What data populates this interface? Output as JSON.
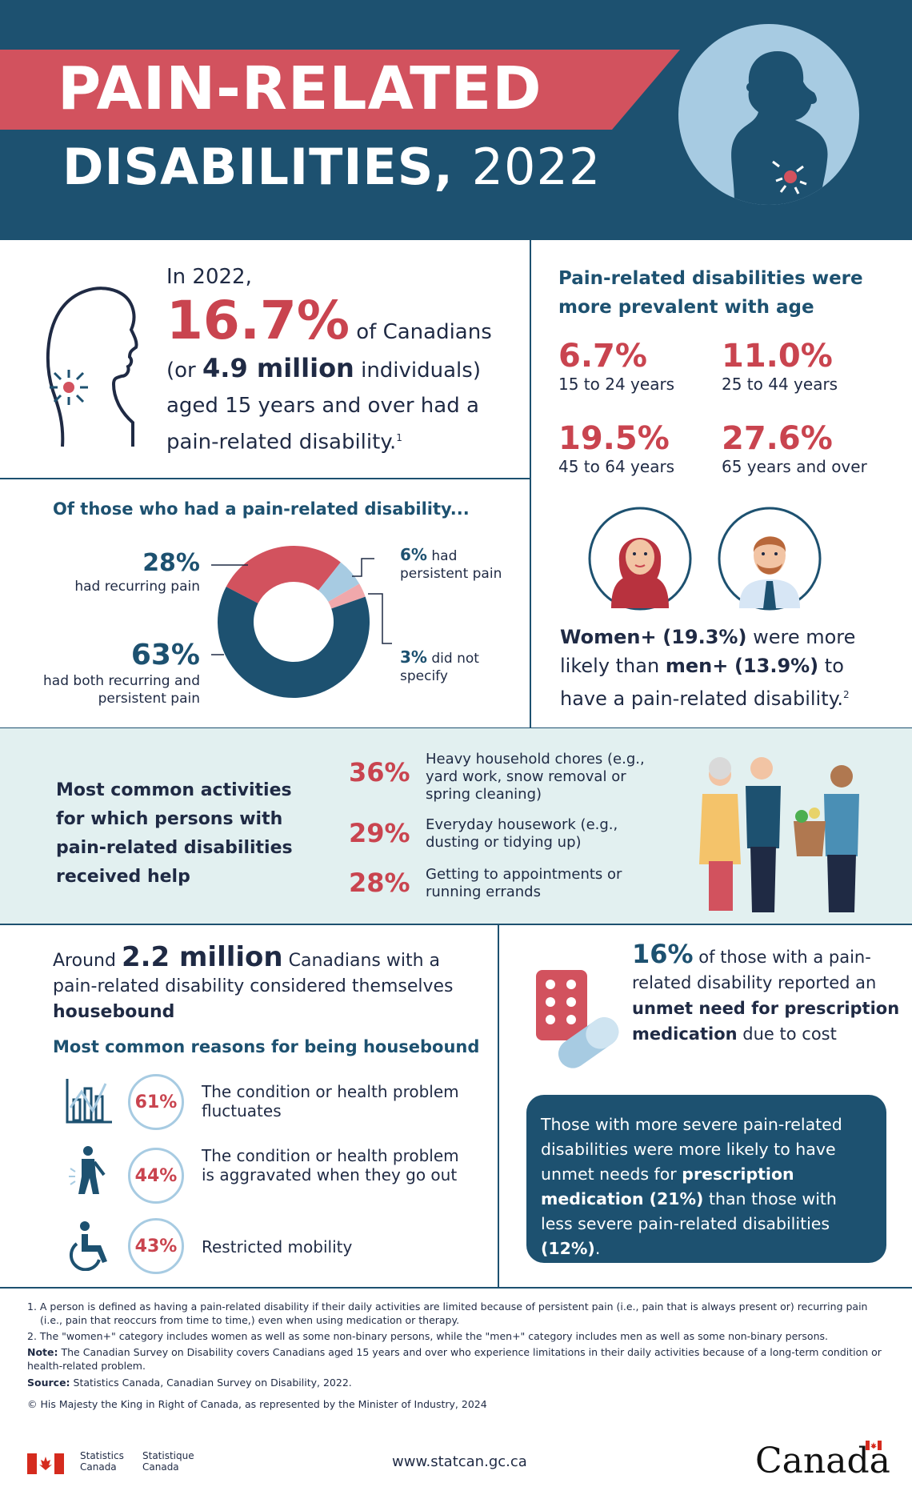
{
  "header": {
    "title_line1": "PAIN-RELATED",
    "title_line2": "DISABILITIES,",
    "year": "2022"
  },
  "intro": {
    "lead": "In 2022,",
    "percent": "16.7%",
    "of_canadians": "of Canadians",
    "open": "(or",
    "millions": "4.9 million",
    "individuals": "individuals)",
    "rest": "aged 15 years and over had a pain-related disability.",
    "footnote": "1"
  },
  "age": {
    "heading": "Pain-related disabilities were more prevalent with age",
    "groups": [
      {
        "value": "6.7%",
        "label": "15 to 24 years"
      },
      {
        "value": "11.0%",
        "label": "25 to 44 years"
      },
      {
        "value": "19.5%",
        "label": "45 to 64 years"
      },
      {
        "value": "27.6%",
        "label": "65 years and over"
      }
    ]
  },
  "pain_type": {
    "heading": "Of those who had a pain-related disability...",
    "recurring_pct": "28%",
    "recurring_label": "had recurring pain",
    "persistent_pct": "6%",
    "persistent_label_a": "had",
    "persistent_label_b": "persistent pain",
    "unspecified_pct": "3%",
    "unspecified_label_a": "did not",
    "unspecified_label_b": "specify",
    "both_pct": "63%",
    "both_label_a": "had both recurring and",
    "both_label_b": "persistent pain"
  },
  "chart_data": {
    "type": "pie",
    "title": "Of those who had a pain-related disability...",
    "categories": [
      "had both recurring and persistent pain",
      "had recurring pain",
      "had persistent pain",
      "did not specify"
    ],
    "values": [
      63,
      28,
      6,
      3
    ],
    "colors": [
      "#1d5170",
      "#d2525e",
      "#a7cbe2",
      "#f0a8ab"
    ]
  },
  "gender": {
    "women": "Women+",
    "women_pct": "(19.3%)",
    "mid": "were more likely than",
    "men": "men+",
    "men_pct": "(13.9%)",
    "end": "to have a pain-related disability.",
    "footnote": "2"
  },
  "activities": {
    "heading": "Most common activities for which persons with pain-related disabilities received help",
    "items": [
      {
        "pct": "36%",
        "text": "Heavy household chores (e.g., yard work, snow removal or spring cleaning)"
      },
      {
        "pct": "29%",
        "text": "Everyday housework (e.g., dusting or tidying up)"
      },
      {
        "pct": "28%",
        "text": "Getting to appointments or running errands"
      }
    ]
  },
  "housebound": {
    "around": "Around",
    "count": "2.2 million",
    "canadians": "Canadians",
    "mid": "with a pain-related disability considered themselves",
    "housebound_word": "housebound",
    "reasons_heading": "Most common reasons for being housebound",
    "reasons": [
      {
        "pct": "61%",
        "text": "The condition or health problem fluctuates",
        "icon": "fluctuating-chart-icon"
      },
      {
        "pct": "44%",
        "text": "The condition or health problem is aggravated when they go out",
        "icon": "person-back-pain-icon"
      },
      {
        "pct": "43%",
        "text": "Restricted mobility",
        "icon": "wheelchair-icon"
      }
    ]
  },
  "medication": {
    "pct": "16%",
    "a": "of those with a pain-related disability reported an",
    "b": "unmet need for prescription medication",
    "c": "due to cost"
  },
  "severe": {
    "a": "Those with more severe pain-related disabilities were more likely to have unmet needs for",
    "b": "prescription medication (21%)",
    "c": "than those with less severe pain-related disabilities",
    "d": "(12%)",
    "e": "."
  },
  "notes": {
    "n1": "1.  A person is defined as having a pain-related disability if their daily activities are limited because of persistent pain (i.e., pain that is always present or) recurring pain (i.e., pain that reoccurs from time to time,) even when using medication or therapy.",
    "n2": "2.  The \"women+\" category includes women as well as some non-binary persons, while the \"men+\" category includes men as well as some non-binary persons.",
    "note_label": "Note:",
    "note_text": "The Canadian Survey on Disability covers Canadians aged 15 years and over who experience limitations in their daily activities because of a long-term condition or health-related problem.",
    "source_label": "Source:",
    "source_text": "Statistics Canada, Canadian Survey on Disability, 2022.",
    "copyright": "© His Majesty the King in Right of Canada, as represented by the Minister of Industry, 2024"
  },
  "footer": {
    "stats_en_1": "Statistics",
    "stats_en_2": "Canada",
    "stats_fr_1": "Statistique",
    "stats_fr_2": "Canada",
    "url": "www.statcan.gc.ca",
    "wordmark": "Canada"
  }
}
